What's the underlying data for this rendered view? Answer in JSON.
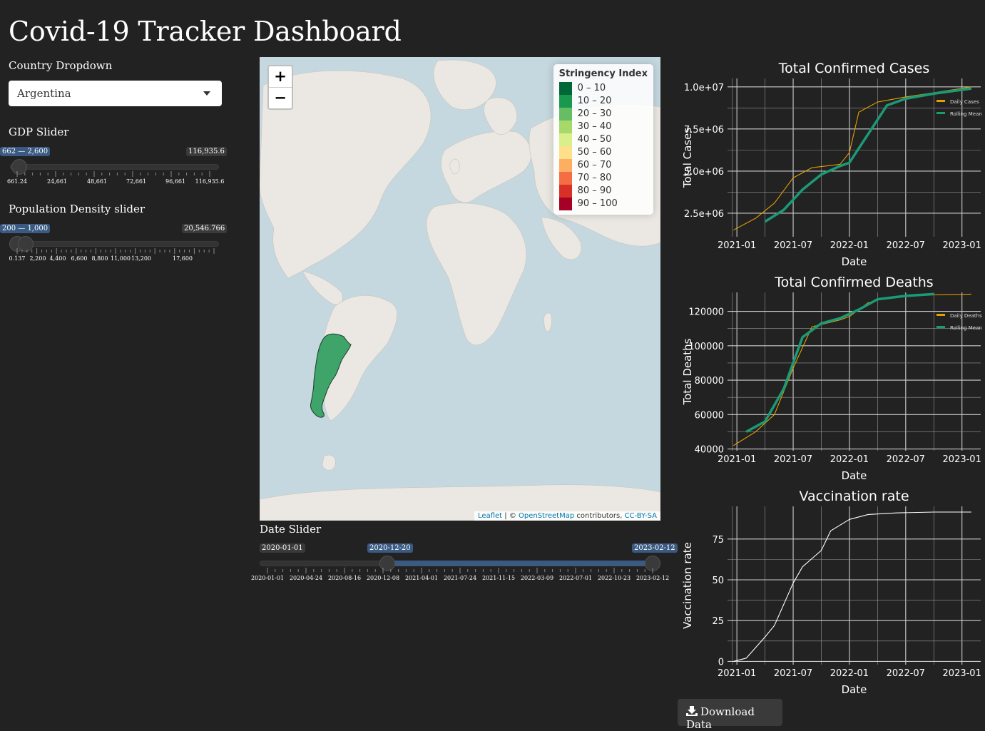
{
  "page_title": "Covid-19 Tracker Dashboard",
  "country": {
    "label": "Country Dropdown",
    "value": "Argentina"
  },
  "gdp_slider": {
    "label": "GDP Slider",
    "range_label": "662 — 2,600",
    "max_label": "116,935.6",
    "ticks": [
      "661.24",
      "24,661",
      "48,661",
      "72,661",
      "96,661",
      "116,935.6"
    ]
  },
  "pop_slider": {
    "label": "Population Density slider",
    "range_label": "200 — 1,000",
    "max_label": "20,546.766",
    "ticks": [
      "0.137",
      "2,200",
      "4,400",
      "6,600",
      "8,800",
      "11,000",
      "13,200",
      "17,600"
    ]
  },
  "date_slider": {
    "label": "Date Slider",
    "min_label": "2020-01-01",
    "from_label": "2020-12-20",
    "to_label": "2023-02-12",
    "ticks": [
      "2020-01-01",
      "2020-04-24",
      "2020-08-16",
      "2020-12-08",
      "2021-04-01",
      "2021-07-24",
      "2021-11-15",
      "2022-03-09",
      "2022-07-01",
      "2022-10-23",
      "2023-02-12"
    ]
  },
  "map": {
    "zoom_in": "+",
    "zoom_out": "−",
    "legend_title": "Stringency Index",
    "legend": [
      {
        "label": "0 – 10",
        "color": "#006837"
      },
      {
        "label": "10 – 20",
        "color": "#1a9850"
      },
      {
        "label": "20 – 30",
        "color": "#66bd63"
      },
      {
        "label": "30 – 40",
        "color": "#a6d96a"
      },
      {
        "label": "40 – 50",
        "color": "#d9ef8b"
      },
      {
        "label": "50 – 60",
        "color": "#fee08b"
      },
      {
        "label": "60 – 70",
        "color": "#fdae61"
      },
      {
        "label": "70 – 80",
        "color": "#f46d43"
      },
      {
        "label": "80 – 90",
        "color": "#d73027"
      },
      {
        "label": "90 – 100",
        "color": "#a50026"
      }
    ],
    "attribution_leaflet": "Leaflet",
    "attribution_sep": " | © ",
    "attribution_osm": "OpenStreetMap",
    "attribution_contrib": " contributors, ",
    "attribution_license": "CC-BY-SA",
    "highlight_color": "#3fa46a"
  },
  "download_button": "Download Data",
  "chart_data": [
    {
      "type": "line",
      "title": "Total Confirmed Cases",
      "xlabel": "Date",
      "ylabel": "Total Cases",
      "x_ticks": [
        "2021-01",
        "2021-07",
        "2022-01",
        "2022-07",
        "2023-01"
      ],
      "y_ticks": [
        "2.5e+06",
        "5.0e+06",
        "7.5e+06",
        "1.0e+07"
      ],
      "ylim": [
        1100000,
        10500000
      ],
      "legend": [
        "Daily Cases",
        "Rolling Mean"
      ],
      "series": [
        {
          "name": "Daily Cases",
          "color": "#e69f00",
          "x": [
            "2020-12-20",
            "2021-03",
            "2021-05",
            "2021-07",
            "2021-09",
            "2021-12",
            "2022-01",
            "2022-02",
            "2022-04",
            "2022-07",
            "2022-10",
            "2023-02"
          ],
          "values": [
            1500000,
            2200000,
            3100000,
            4600000,
            5200000,
            5400000,
            6100000,
            8500000,
            9100000,
            9400000,
            9650000,
            10000000
          ]
        },
        {
          "name": "Rolling Mean",
          "color": "#1a9a77",
          "x": [
            "2021-04",
            "2021-06",
            "2021-08",
            "2021-10",
            "2021-12",
            "2022-01",
            "2022-03",
            "2022-05",
            "2022-07",
            "2022-10",
            "2023-02"
          ],
          "values": [
            2000000,
            2700000,
            3900000,
            4800000,
            5300000,
            5500000,
            7200000,
            8900000,
            9300000,
            9600000,
            9900000
          ]
        }
      ]
    },
    {
      "type": "line",
      "title": "Total Confirmed Deaths",
      "xlabel": "Date",
      "ylabel": "Total Deaths",
      "x_ticks": [
        "2021-01",
        "2021-07",
        "2022-01",
        "2022-07",
        "2023-01"
      ],
      "y_ticks": [
        "40000",
        "60000",
        "80000",
        "100000",
        "120000"
      ],
      "ylim": [
        39000,
        131000
      ],
      "legend": [
        "Daily Deaths",
        "Rolling Mean"
      ],
      "series": [
        {
          "name": "Daily Deaths",
          "color": "#e69f00",
          "x": [
            "2020-12-20",
            "2021-03",
            "2021-05",
            "2021-07",
            "2021-09",
            "2021-12",
            "2022-01",
            "2022-03",
            "2022-05",
            "2022-09",
            "2023-02"
          ],
          "values": [
            42000,
            50000,
            60000,
            87000,
            111000,
            115000,
            117000,
            125000,
            128000,
            129500,
            130000
          ]
        },
        {
          "name": "Rolling Mean",
          "color": "#1a9a77",
          "x": [
            "2021-02",
            "2021-04",
            "2021-06",
            "2021-08",
            "2021-10",
            "2021-12",
            "2022-02",
            "2022-04",
            "2022-07",
            "2022-10"
          ],
          "values": [
            50000,
            56000,
            75000,
            105000,
            113000,
            116000,
            121000,
            127000,
            129000,
            130000
          ]
        }
      ]
    },
    {
      "type": "line",
      "title": "Vaccination rate",
      "xlabel": "Date",
      "ylabel": "Vaccination rate",
      "x_ticks": [
        "2021-01",
        "2021-07",
        "2022-01",
        "2022-07",
        "2023-01"
      ],
      "y_ticks": [
        "0",
        "25",
        "50",
        "75"
      ],
      "ylim": [
        -2,
        95
      ],
      "series": [
        {
          "name": "",
          "color": "#ffffff",
          "x": [
            "2020-12-20",
            "2021-02",
            "2021-04",
            "2021-05",
            "2021-07",
            "2021-08",
            "2021-10",
            "2021-11",
            "2022-01",
            "2022-03",
            "2022-06",
            "2022-10",
            "2023-02"
          ],
          "values": [
            0,
            2,
            15,
            22,
            48,
            58,
            68,
            80,
            87,
            90,
            91,
            91.5,
            91.5
          ]
        }
      ]
    }
  ]
}
